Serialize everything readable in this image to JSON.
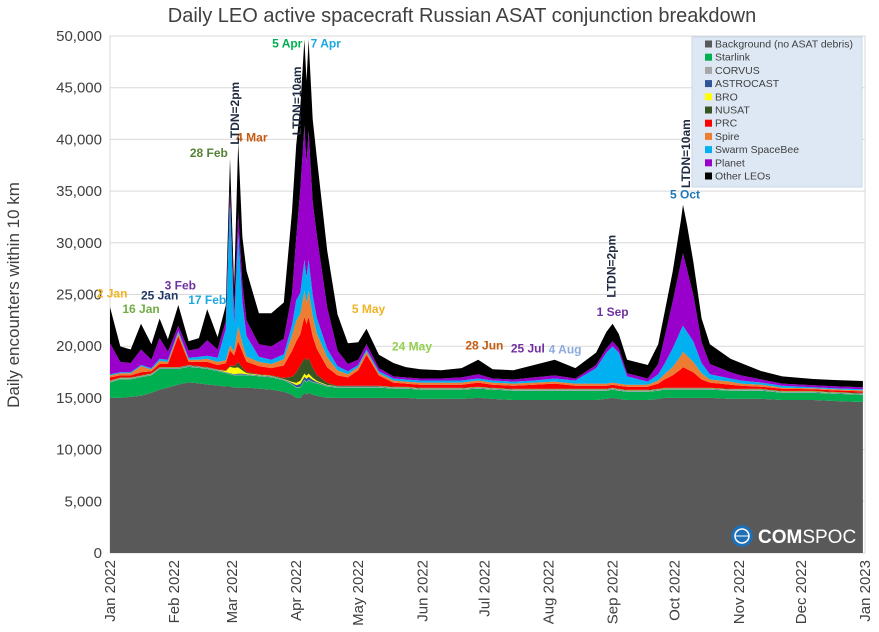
{
  "chart_data": {
    "type": "area",
    "stacked": true,
    "title": "Daily LEO active spacecraft Russian ASAT conjunction breakdown",
    "xlabel": "",
    "ylabel": "Daily encounters within 10 km",
    "ylim": [
      0,
      50000
    ],
    "xlim": [
      "2022-01-01",
      "2023-01-01"
    ],
    "yticks": [
      0,
      5000,
      10000,
      15000,
      20000,
      25000,
      30000,
      35000,
      40000,
      45000,
      50000
    ],
    "ytick_labels": [
      "0",
      "5,000",
      "10,000",
      "15,000",
      "20,000",
      "25,000",
      "30,000",
      "35,000",
      "40,000",
      "45,000",
      "50,000"
    ],
    "xticks": [
      "2022-01-01",
      "2022-02-01",
      "2022-03-01",
      "2022-04-01",
      "2022-05-01",
      "2022-06-01",
      "2022-07-01",
      "2022-08-01",
      "2022-09-01",
      "2022-10-01",
      "2022-11-01",
      "2022-12-01",
      "2023-01-01"
    ],
    "xtick_labels": [
      "Jan 2022",
      "Feb 2022",
      "Mar 2022",
      "Apr 2022",
      "May 2022",
      "Jun 2022",
      "Jul 2022",
      "Aug 2022",
      "Sep 2022",
      "Oct 2022",
      "Nov 2022",
      "Dec 2022",
      "Jan 2023"
    ],
    "grid": true,
    "legend_position": "top-right",
    "series": [
      {
        "name": "Background (no ASAT debris)",
        "color": "#595959"
      },
      {
        "name": "Starlink",
        "color": "#00b050"
      },
      {
        "name": "CORVUS",
        "color": "#a6a6a6"
      },
      {
        "name": "ASTROCAST",
        "color": "#2f5597"
      },
      {
        "name": "BRO",
        "color": "#ffff00"
      },
      {
        "name": "NUSAT",
        "color": "#375623"
      },
      {
        "name": "PRC",
        "color": "#ff0000"
      },
      {
        "name": "Spire",
        "color": "#ed7d31"
      },
      {
        "name": "Swarm SpaceBee",
        "color": "#00b0f0"
      },
      {
        "name": "Planet",
        "color": "#9900cc"
      },
      {
        "name": "Other LEOs",
        "color": "#000000"
      }
    ],
    "columns": [
      "date",
      "Background (no ASAT debris)",
      "Starlink",
      "CORVUS",
      "ASTROCAST",
      "BRO",
      "NUSAT",
      "PRC",
      "Spire",
      "Swarm SpaceBee",
      "Planet",
      "Other LEOs"
    ],
    "rows": [
      [
        "2022-01-01",
        15000,
        1500,
        50,
        50,
        30,
        50,
        300,
        200,
        100,
        3000,
        3500
      ],
      [
        "2022-01-06",
        15000,
        1800,
        50,
        50,
        30,
        50,
        200,
        200,
        100,
        1000,
        1500
      ],
      [
        "2022-01-11",
        15100,
        1700,
        50,
        50,
        30,
        50,
        200,
        200,
        100,
        900,
        1300
      ],
      [
        "2022-01-16",
        15200,
        1800,
        50,
        50,
        30,
        50,
        300,
        600,
        100,
        1500,
        2500
      ],
      [
        "2022-01-21",
        15500,
        1700,
        50,
        50,
        30,
        50,
        200,
        200,
        100,
        800,
        1500
      ],
      [
        "2022-01-25",
        15800,
        2000,
        50,
        50,
        30,
        50,
        300,
        300,
        200,
        2000,
        1900
      ],
      [
        "2022-01-29",
        16000,
        1800,
        50,
        50,
        30,
        50,
        300,
        200,
        200,
        800,
        1200
      ],
      [
        "2022-02-03",
        16300,
        1500,
        50,
        50,
        30,
        50,
        3000,
        300,
        200,
        500,
        2000
      ],
      [
        "2022-02-08",
        16500,
        1500,
        50,
        50,
        30,
        50,
        300,
        200,
        200,
        700,
        900
      ],
      [
        "2022-02-13",
        16400,
        1500,
        50,
        50,
        30,
        50,
        400,
        200,
        300,
        800,
        1000
      ],
      [
        "2022-02-17",
        16300,
        1500,
        50,
        50,
        30,
        50,
        500,
        300,
        300,
        1500,
        3000
      ],
      [
        "2022-02-22",
        16200,
        1400,
        50,
        50,
        30,
        50,
        400,
        300,
        400,
        800,
        1200
      ],
      [
        "2022-02-26",
        16100,
        1300,
        50,
        50,
        100,
        50,
        700,
        300,
        3000,
        800,
        1500
      ],
      [
        "2022-02-28",
        16100,
        1200,
        50,
        50,
        600,
        100,
        1500,
        500,
        14000,
        1000,
        3100
      ],
      [
        "2022-03-02",
        16000,
        1200,
        50,
        50,
        600,
        200,
        1000,
        400,
        2500,
        1200,
        2500
      ],
      [
        "2022-03-04",
        16000,
        1200,
        50,
        100,
        600,
        500,
        2000,
        1500,
        9000,
        2000,
        6800
      ],
      [
        "2022-03-06",
        16000,
        1200,
        50,
        100,
        300,
        300,
        1500,
        800,
        4000,
        1800,
        4500
      ],
      [
        "2022-03-08",
        16000,
        1200,
        50,
        50,
        100,
        100,
        1000,
        500,
        2000,
        1500,
        4800
      ],
      [
        "2022-03-14",
        15900,
        1200,
        50,
        50,
        30,
        50,
        800,
        400,
        500,
        1200,
        3000
      ],
      [
        "2022-03-20",
        15800,
        1200,
        50,
        50,
        30,
        50,
        700,
        400,
        400,
        1300,
        3200
      ],
      [
        "2022-03-26",
        15600,
        1100,
        50,
        50,
        30,
        100,
        1200,
        600,
        500,
        1500,
        3500
      ],
      [
        "2022-03-30",
        15300,
        1000,
        50,
        100,
        100,
        500,
        2500,
        1500,
        1000,
        3000,
        8000
      ],
      [
        "2022-04-01",
        15000,
        1000,
        50,
        200,
        200,
        1000,
        3000,
        2000,
        2000,
        6000,
        9000
      ],
      [
        "2022-04-03",
        15000,
        1000,
        50,
        300,
        300,
        1500,
        3000,
        2000,
        2000,
        10000,
        8000
      ],
      [
        "2022-04-05",
        15500,
        1200,
        50,
        300,
        300,
        1500,
        4000,
        2500,
        3000,
        13000,
        8300
      ],
      [
        "2022-04-06",
        15300,
        1200,
        50,
        300,
        300,
        1500,
        3500,
        2000,
        2500,
        11000,
        8000
      ],
      [
        "2022-04-07",
        15500,
        1200,
        50,
        300,
        300,
        1500,
        4000,
        2500,
        3000,
        12500,
        8800
      ],
      [
        "2022-04-09",
        15300,
        1200,
        50,
        200,
        200,
        1000,
        3000,
        2000,
        2000,
        9000,
        8000
      ],
      [
        "2022-04-11",
        15200,
        1200,
        50,
        100,
        100,
        600,
        2500,
        1500,
        1500,
        8000,
        7500
      ],
      [
        "2022-04-16",
        15000,
        1100,
        50,
        50,
        50,
        200,
        1500,
        1000,
        800,
        4000,
        5500
      ],
      [
        "2022-04-21",
        15000,
        1000,
        50,
        50,
        30,
        50,
        1000,
        500,
        400,
        1500,
        3500
      ],
      [
        "2022-04-26",
        15000,
        1000,
        50,
        50,
        30,
        50,
        800,
        300,
        300,
        700,
        2000
      ],
      [
        "2022-05-01",
        15000,
        1000,
        50,
        50,
        30,
        50,
        1500,
        300,
        200,
        500,
        1700
      ],
      [
        "2022-05-05",
        15000,
        1000,
        50,
        50,
        30,
        50,
        3000,
        300,
        200,
        500,
        1500
      ],
      [
        "2022-05-11",
        15000,
        1000,
        50,
        50,
        30,
        50,
        1000,
        200,
        200,
        300,
        1300
      ],
      [
        "2022-05-18",
        15000,
        900,
        50,
        50,
        30,
        50,
        400,
        200,
        200,
        200,
        1300
      ],
      [
        "2022-05-24",
        15000,
        900,
        50,
        50,
        30,
        50,
        300,
        200,
        200,
        200,
        1000
      ],
      [
        "2022-05-31",
        14900,
        900,
        50,
        50,
        30,
        50,
        300,
        200,
        200,
        200,
        900
      ],
      [
        "2022-06-10",
        14900,
        900,
        50,
        50,
        30,
        50,
        300,
        200,
        200,
        200,
        800
      ],
      [
        "2022-06-20",
        14900,
        900,
        50,
        50,
        30,
        50,
        300,
        200,
        200,
        300,
        900
      ],
      [
        "2022-06-28",
        15000,
        900,
        50,
        50,
        30,
        50,
        400,
        200,
        200,
        400,
        1400
      ],
      [
        "2022-07-05",
        14900,
        900,
        50,
        50,
        30,
        50,
        300,
        200,
        200,
        200,
        900
      ],
      [
        "2022-07-15",
        14800,
        900,
        50,
        50,
        30,
        50,
        300,
        200,
        200,
        200,
        900
      ],
      [
        "2022-07-25",
        14800,
        900,
        50,
        50,
        30,
        50,
        400,
        200,
        200,
        300,
        1200
      ],
      [
        "2022-08-04",
        14800,
        900,
        50,
        50,
        30,
        50,
        500,
        200,
        300,
        300,
        1500
      ],
      [
        "2022-08-14",
        14800,
        900,
        50,
        50,
        30,
        50,
        300,
        200,
        300,
        200,
        1000
      ],
      [
        "2022-08-24",
        14800,
        900,
        50,
        50,
        30,
        50,
        300,
        200,
        1500,
        300,
        1200
      ],
      [
        "2022-08-29",
        14900,
        800,
        50,
        50,
        30,
        50,
        300,
        200,
        3000,
        400,
        1600
      ],
      [
        "2022-09-01",
        15000,
        800,
        50,
        50,
        30,
        50,
        300,
        200,
        3500,
        500,
        1700
      ],
      [
        "2022-09-04",
        14900,
        800,
        50,
        50,
        30,
        50,
        300,
        200,
        3000,
        400,
        1400
      ],
      [
        "2022-09-08",
        14800,
        800,
        50,
        50,
        30,
        50,
        300,
        200,
        800,
        300,
        1300
      ],
      [
        "2022-09-18",
        14800,
        800,
        50,
        50,
        30,
        50,
        300,
        200,
        300,
        300,
        1300
      ],
      [
        "2022-09-23",
        14900,
        800,
        50,
        50,
        30,
        50,
        500,
        300,
        600,
        1000,
        1900
      ],
      [
        "2022-09-26",
        15000,
        800,
        50,
        50,
        30,
        50,
        800,
        500,
        1000,
        2500,
        2400
      ],
      [
        "2022-09-30",
        15000,
        800,
        50,
        50,
        30,
        50,
        1200,
        800,
        1800,
        4500,
        2900
      ],
      [
        "2022-10-04",
        15000,
        800,
        50,
        50,
        30,
        50,
        1800,
        1300,
        2500,
        6500,
        4100
      ],
      [
        "2022-10-05",
        15000,
        800,
        50,
        50,
        30,
        50,
        2000,
        1500,
        2500,
        7000,
        4700
      ],
      [
        "2022-10-07",
        15000,
        800,
        50,
        50,
        30,
        50,
        1800,
        1300,
        2300,
        6000,
        4300
      ],
      [
        "2022-10-10",
        15000,
        800,
        50,
        50,
        30,
        50,
        1500,
        1000,
        2000,
        4500,
        3200
      ],
      [
        "2022-10-14",
        15000,
        800,
        50,
        50,
        30,
        50,
        800,
        600,
        1000,
        2000,
        2300
      ],
      [
        "2022-10-18",
        15000,
        800,
        50,
        50,
        30,
        50,
        500,
        300,
        500,
        1000,
        1900
      ],
      [
        "2022-10-28",
        14900,
        800,
        50,
        50,
        30,
        50,
        400,
        300,
        300,
        600,
        1300
      ],
      [
        "2022-11-02",
        14900,
        800,
        50,
        50,
        30,
        50,
        300,
        200,
        300,
        500,
        1200
      ],
      [
        "2022-11-12",
        14900,
        800,
        50,
        50,
        30,
        50,
        200,
        200,
        200,
        300,
        800
      ],
      [
        "2022-11-22",
        14800,
        700,
        50,
        50,
        30,
        50,
        200,
        100,
        200,
        200,
        700
      ],
      [
        "2022-12-07",
        14800,
        700,
        50,
        50,
        30,
        50,
        150,
        100,
        100,
        200,
        600
      ],
      [
        "2022-12-17",
        14700,
        700,
        50,
        50,
        30,
        50,
        150,
        100,
        100,
        200,
        600
      ],
      [
        "2022-12-31",
        14600,
        700,
        50,
        50,
        30,
        50,
        150,
        100,
        100,
        200,
        600
      ]
    ],
    "annotations": [
      {
        "text": "2 Jan",
        "date": "2022-01-02",
        "y": 24700,
        "color": "#f0b323",
        "anchor": "middle",
        "vertical": false
      },
      {
        "text": "16 Jan",
        "date": "2022-01-16",
        "y": 23200,
        "color": "#70ad47",
        "anchor": "middle",
        "vertical": false
      },
      {
        "text": "25 Jan",
        "date": "2022-01-25",
        "y": 24500,
        "color": "#1f3864",
        "anchor": "middle",
        "vertical": false
      },
      {
        "text": "3 Feb",
        "date": "2022-02-04",
        "y": 25500,
        "color": "#7030a0",
        "anchor": "middle",
        "vertical": false
      },
      {
        "text": "17 Feb",
        "date": "2022-02-17",
        "y": 24100,
        "color": "#1ca8e0",
        "anchor": "middle",
        "vertical": false
      },
      {
        "text": "28 Feb",
        "date": "2022-02-27",
        "y": 38300,
        "color": "#548235",
        "anchor": "end",
        "vertical": false
      },
      {
        "text": "4 Mar",
        "date": "2022-03-03",
        "y": 39800,
        "color": "#c55a11",
        "anchor": "start",
        "vertical": false
      },
      {
        "text": "LTDN=2pm",
        "date": "2022-03-02",
        "y": 39500,
        "color": "#1f2a40",
        "anchor": "start",
        "vertical": true
      },
      {
        "text": "LTDN=10am",
        "date": "2022-04-01",
        "y": 40400,
        "color": "#1f2a40",
        "anchor": "start",
        "vertical": true
      },
      {
        "text": "5 Apr",
        "date": "2022-04-04",
        "y": 48900,
        "color": "#00b050",
        "anchor": "end",
        "vertical": false
      },
      {
        "text": "7 Apr",
        "date": "2022-04-08",
        "y": 48900,
        "color": "#1ca8e0",
        "anchor": "start",
        "vertical": false
      },
      {
        "text": "5 May",
        "date": "2022-05-06",
        "y": 23200,
        "color": "#f0b323",
        "anchor": "middle",
        "vertical": false
      },
      {
        "text": "24 May",
        "date": "2022-05-27",
        "y": 19600,
        "color": "#92d050",
        "anchor": "middle",
        "vertical": false
      },
      {
        "text": "28 Jun",
        "date": "2022-07-01",
        "y": 19700,
        "color": "#c55a11",
        "anchor": "middle",
        "vertical": false
      },
      {
        "text": "25 Jul",
        "date": "2022-07-22",
        "y": 19400,
        "color": "#7030a0",
        "anchor": "middle",
        "vertical": false
      },
      {
        "text": "4 Aug",
        "date": "2022-08-09",
        "y": 19300,
        "color": "#8eaadb",
        "anchor": "middle",
        "vertical": false
      },
      {
        "text": "LTDN=2pm",
        "date": "2022-08-31",
        "y": 24700,
        "color": "#1f2a40",
        "anchor": "start",
        "vertical": true
      },
      {
        "text": "1 Sep",
        "date": "2022-09-01",
        "y": 22900,
        "color": "#7030a0",
        "anchor": "middle",
        "vertical": false
      },
      {
        "text": "LTDN=10am",
        "date": "2022-10-06",
        "y": 35300,
        "color": "#1f2a40",
        "anchor": "start",
        "vertical": true
      },
      {
        "text": "5 Oct",
        "date": "2022-10-06",
        "y": 34300,
        "color": "#1f78b4",
        "anchor": "middle",
        "vertical": false
      }
    ]
  },
  "logo": {
    "text_bold": "COM",
    "text_light": "SPOC"
  }
}
